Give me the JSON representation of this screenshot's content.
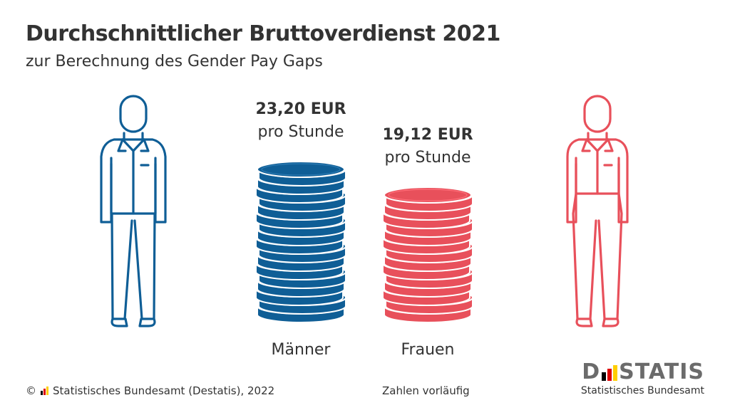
{
  "chart_data": {
    "type": "bar",
    "title": "Durchschnittlicher Bruttoverdienst 2021",
    "subtitle": "zur Berechnung des Gender Pay Gaps",
    "categories": [
      "Männer",
      "Frauen"
    ],
    "values": [
      23.2,
      19.12
    ],
    "value_labels": [
      "23,20 EUR",
      "19,12 EUR"
    ],
    "unit_label": "pro Stunde",
    "colors": [
      "#0f5e96",
      "#e8505b"
    ],
    "ylim": [
      0,
      25
    ]
  },
  "footer": {
    "source": "Statistisches Bundesamt (Destatis), 2022",
    "copyright": "©",
    "note": "Zahlen vorläufig"
  },
  "logo": {
    "word_left": "D",
    "word_right": "STATIS",
    "subtitle": "Statistisches Bundesamt"
  },
  "flag_colors": [
    "#000000",
    "#dd0000",
    "#ffce00"
  ]
}
